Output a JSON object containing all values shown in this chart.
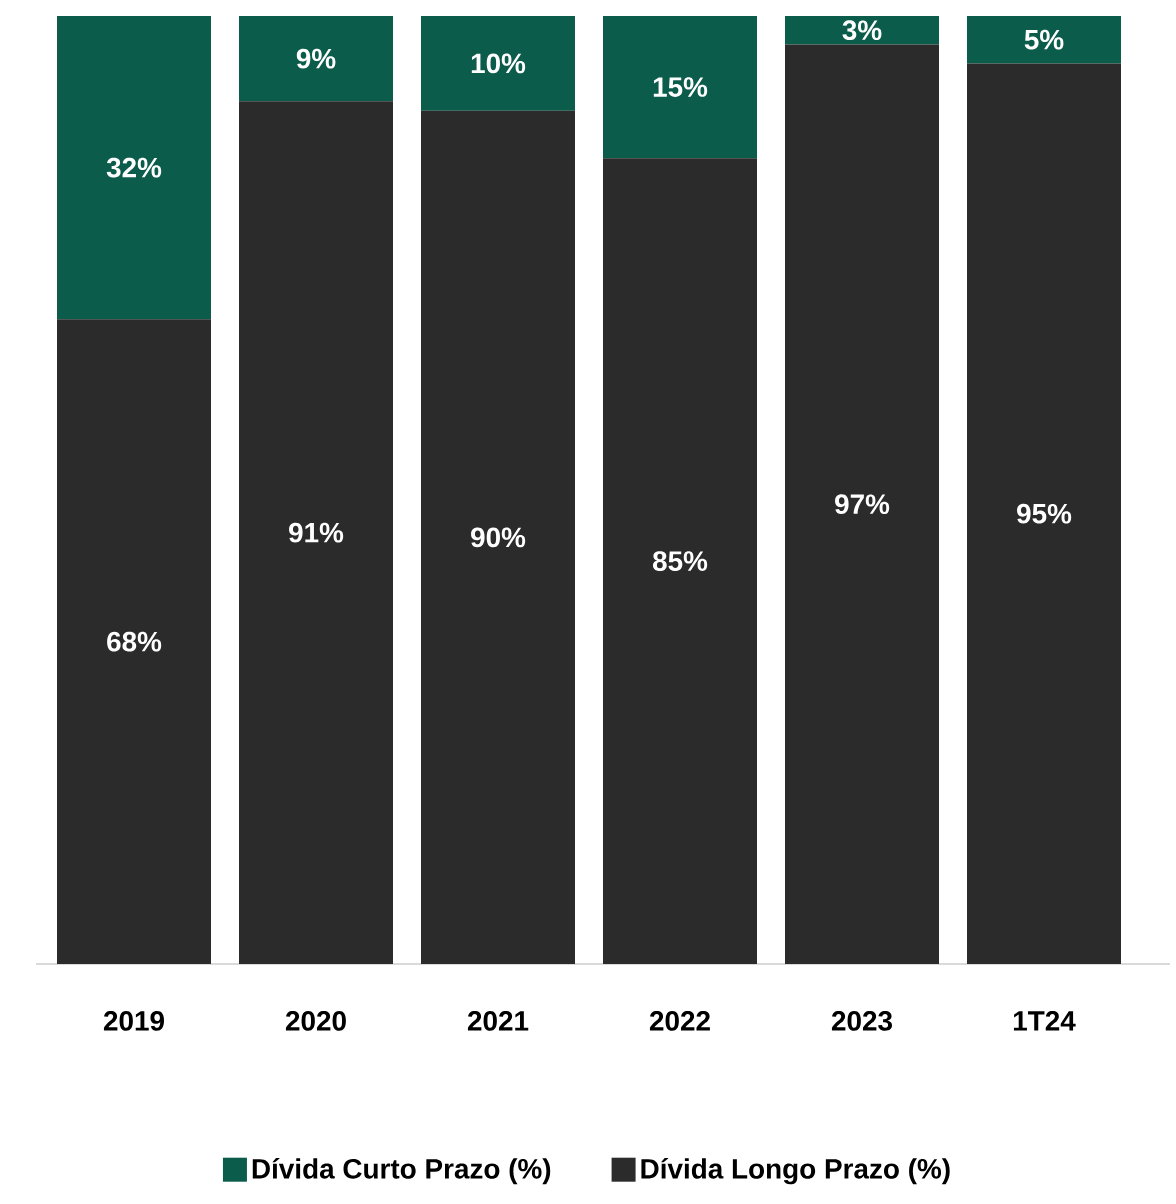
{
  "chart_data": {
    "type": "bar",
    "stacked": true,
    "categories": [
      "2019",
      "2020",
      "2021",
      "2022",
      "2023",
      "1T24"
    ],
    "tick_labels": "x",
    "legend": "bottom",
    "series": [
      {
        "name": "Dívida Longo Prazo (%)",
        "color": "#2b2b2b",
        "values": [
          68,
          91,
          90,
          85,
          97,
          95
        ],
        "value_labels": [
          "68%",
          "91%",
          "90%",
          "85%",
          "97%",
          "95%"
        ]
      },
      {
        "name": "Dívida Curto Prazo (%)",
        "color": "#0b5c4b",
        "values": [
          32,
          9,
          10,
          15,
          3,
          5
        ],
        "value_labels": [
          "32%",
          "9%",
          "10%",
          "15%",
          "3%",
          "5%"
        ]
      }
    ]
  }
}
